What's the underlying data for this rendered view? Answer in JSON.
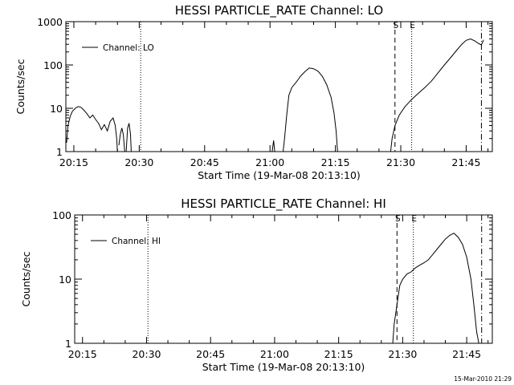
{
  "footer": "15-Mar-2010 21:29",
  "chart_data": [
    {
      "type": "line",
      "title": "HESSI PARTICLE_RATE Channel: LO",
      "xlabel": "Start Time (19-Mar-08 20:13:10)",
      "ylabel": "Counts/sec",
      "yscale": "log",
      "ylim": [
        1,
        1000
      ],
      "xlim": [
        "20:13:10",
        "21:51:00"
      ],
      "yticks": [
        "1",
        "10",
        "100",
        "1000"
      ],
      "xticks": [
        "20:15",
        "20:30",
        "20:45",
        "21:00",
        "21:15",
        "21:30",
        "21:45"
      ],
      "legend": {
        "position": "top-left",
        "entries": [
          "Channel: LO"
        ]
      },
      "markers": [
        {
          "label": "",
          "time": "20:30:20",
          "style": "dotted"
        },
        {
          "label": "S",
          "time": "21:28:40",
          "style": "dashed"
        },
        {
          "label": "E",
          "time": "21:32:30",
          "style": "dotted"
        },
        {
          "label": "",
          "time": "21:48:30",
          "style": "dashdot"
        }
      ],
      "series": [
        {
          "name": "Channel: LO",
          "segments": [
            [
              [
                "20:13:20",
                1.6
              ],
              [
                "20:13:40",
                4
              ],
              [
                "20:14:10",
                6.5
              ],
              [
                "20:14:40",
                8.5
              ],
              [
                "20:15:20",
                10
              ],
              [
                "20:16:00",
                11
              ],
              [
                "20:16:40",
                10.5
              ],
              [
                "20:17:20",
                9
              ],
              [
                "20:18:00",
                7.5
              ],
              [
                "20:18:40",
                6
              ],
              [
                "20:19:20",
                7
              ],
              [
                "20:20:00",
                5.5
              ],
              [
                "20:20:40",
                4.5
              ],
              [
                "20:21:20",
                3.2
              ],
              [
                "20:22:00",
                4.2
              ],
              [
                "20:22:40",
                3
              ],
              [
                "20:23:20",
                5
              ],
              [
                "20:24:00",
                6
              ],
              [
                "20:24:30",
                4
              ],
              [
                "20:24:50",
                2
              ],
              [
                "20:25:00",
                1
              ]
            ],
            [
              [
                "20:25:20",
                1.4
              ],
              [
                "20:25:40",
                2.5
              ],
              [
                "20:26:00",
                3.5
              ],
              [
                "20:26:20",
                2.5
              ],
              [
                "20:26:40",
                1
              ]
            ],
            [
              [
                "20:27:00",
                1
              ],
              [
                "20:27:20",
                3.5
              ],
              [
                "20:27:40",
                4.5
              ],
              [
                "20:28:00",
                2.5
              ],
              [
                "20:28:10",
                1
              ]
            ],
            [
              [
                "21:00:30",
                1
              ],
              [
                "21:00:50",
                1.8
              ],
              [
                "21:01:05",
                1
              ]
            ],
            [
              [
                "21:03:00",
                1
              ],
              [
                "21:03:20",
                2
              ],
              [
                "21:03:50",
                7
              ],
              [
                "21:04:20",
                20
              ],
              [
                "21:05:00",
                30
              ],
              [
                "21:06:00",
                40
              ],
              [
                "21:07:00",
                55
              ],
              [
                "21:08:00",
                70
              ],
              [
                "21:09:00",
                85
              ],
              [
                "21:10:00",
                82
              ],
              [
                "21:11:00",
                72
              ],
              [
                "21:12:00",
                55
              ],
              [
                "21:13:00",
                35
              ],
              [
                "21:14:00",
                18
              ],
              [
                "21:14:40",
                8
              ],
              [
                "21:15:10",
                3
              ],
              [
                "21:15:30",
                1
              ]
            ],
            [
              [
                "21:27:40",
                1
              ],
              [
                "21:28:00",
                2
              ],
              [
                "21:28:40",
                4
              ],
              [
                "21:29:40",
                7
              ],
              [
                "21:31:00",
                11
              ],
              [
                "21:32:30",
                16
              ],
              [
                "21:34:00",
                22
              ],
              [
                "21:35:30",
                30
              ],
              [
                "21:37:00",
                42
              ],
              [
                "21:38:30",
                65
              ],
              [
                "21:40:00",
                100
              ],
              [
                "21:41:30",
                150
              ],
              [
                "21:43:00",
                230
              ],
              [
                "21:44:00",
                300
              ],
              [
                "21:45:00",
                370
              ],
              [
                "21:46:00",
                400
              ],
              [
                "21:47:00",
                360
              ],
              [
                "21:47:40",
                320
              ],
              [
                "21:48:30",
                290
              ],
              [
                "21:49:00",
                380
              ]
            ]
          ]
        }
      ]
    },
    {
      "type": "line",
      "title": "HESSI PARTICLE_RATE Channel: HI",
      "xlabel": "Start Time (19-Mar-08 20:13:10)",
      "ylabel": "Counts/sec",
      "yscale": "log",
      "ylim": [
        1,
        100
      ],
      "xlim": [
        "20:13:10",
        "21:51:00"
      ],
      "yticks": [
        "1",
        "10",
        "100"
      ],
      "xticks": [
        "20:15",
        "20:30",
        "20:45",
        "21:00",
        "21:15",
        "21:30",
        "21:45"
      ],
      "legend": {
        "position": "top-left",
        "entries": [
          "Channel: HI"
        ]
      },
      "markers": [
        {
          "label": "",
          "time": "20:30:20",
          "style": "dotted"
        },
        {
          "label": "S",
          "time": "21:28:40",
          "style": "dashed"
        },
        {
          "label": "E",
          "time": "21:32:30",
          "style": "dotted"
        },
        {
          "label": "",
          "time": "21:48:30",
          "style": "dashdot"
        }
      ],
      "series": [
        {
          "name": "Channel: HI",
          "segments": [
            [
              [
                "21:27:40",
                1
              ],
              [
                "21:28:00",
                2
              ],
              [
                "21:28:40",
                4
              ],
              [
                "21:29:20",
                8
              ],
              [
                "21:30:00",
                10
              ],
              [
                "21:31:00",
                12
              ],
              [
                "21:32:00",
                13
              ],
              [
                "21:33:00",
                15
              ],
              [
                "21:34:00",
                16.5
              ],
              [
                "21:35:00",
                18
              ],
              [
                "21:36:00",
                20
              ],
              [
                "21:37:00",
                24
              ],
              [
                "21:38:00",
                29
              ],
              [
                "21:39:00",
                35
              ],
              [
                "21:40:00",
                42
              ],
              [
                "21:41:00",
                48
              ],
              [
                "21:42:00",
                52
              ],
              [
                "21:43:00",
                45
              ],
              [
                "21:44:00",
                35
              ],
              [
                "21:45:00",
                22
              ],
              [
                "21:46:00",
                10
              ],
              [
                "21:46:40",
                4
              ],
              [
                "21:47:20",
                1.5
              ],
              [
                "21:47:50",
                1
              ]
            ]
          ]
        }
      ]
    }
  ]
}
